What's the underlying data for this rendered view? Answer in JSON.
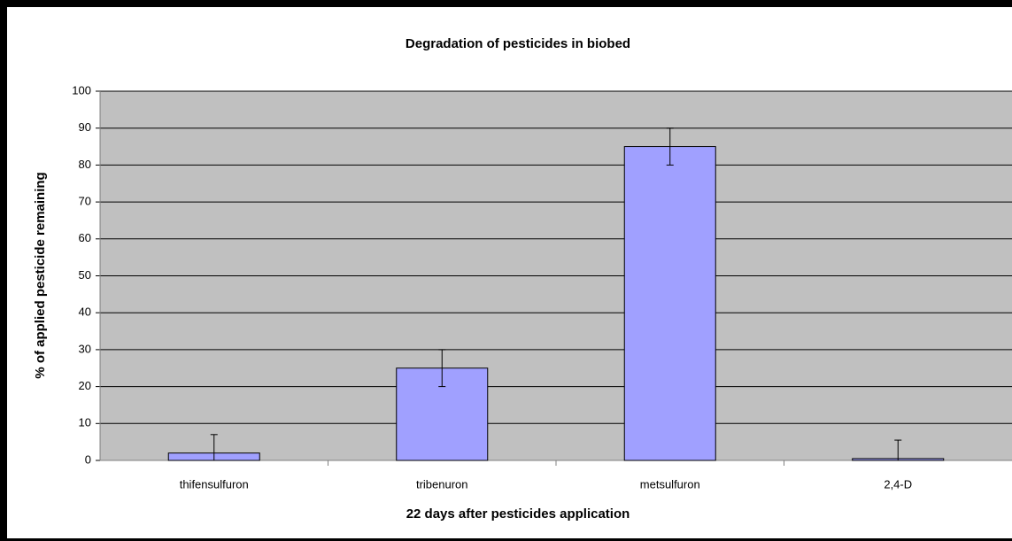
{
  "chart_data": {
    "type": "bar",
    "title": "Degradation of pesticides in biobed",
    "x_label": "22 days after pesticides application",
    "y_label": "% of applied pesticide remaining",
    "categories": [
      "thifensulfuron",
      "tribenuron",
      "metsulfuron",
      "2,4-D"
    ],
    "values": [
      2,
      25,
      85,
      0.5
    ],
    "errors": [
      5,
      5,
      5,
      5
    ],
    "color": "#a0a0ff",
    "ylim": [
      0,
      100
    ],
    "yticks": [
      0,
      10,
      20,
      30,
      40,
      50,
      60,
      70,
      80,
      90,
      100
    ],
    "grid": true
  }
}
